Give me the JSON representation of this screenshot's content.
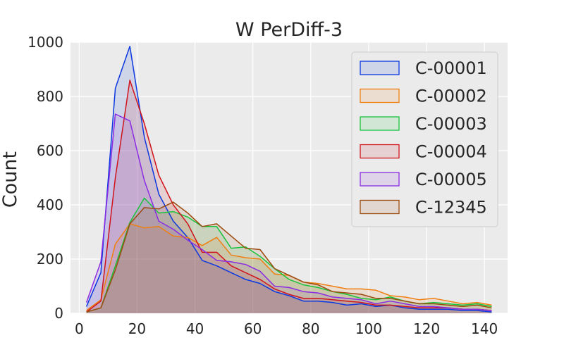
{
  "chart_data": {
    "type": "area",
    "title": "W PerDiff-3",
    "xlabel": "",
    "ylabel": "Count",
    "xlim": [
      -3,
      148
    ],
    "ylim": [
      0,
      1000
    ],
    "xticks": [
      0,
      20,
      40,
      60,
      80,
      100,
      120,
      140
    ],
    "yticks": [
      0,
      200,
      400,
      600,
      800,
      1000
    ],
    "xtick_labels": [
      "0",
      "20",
      "40",
      "60",
      "80",
      "100",
      "120",
      "140"
    ],
    "ytick_labels": [
      "0",
      "200",
      "400",
      "600",
      "800",
      "1000"
    ],
    "grid": true,
    "legend_position": "top-right",
    "series": [
      {
        "name": "C-00001",
        "color": "#0b38e0",
        "x": [
          2.5,
          7.5,
          12.5,
          17.5,
          22.5,
          27.5,
          32.5,
          37.5,
          42.5,
          47.5,
          52.5,
          57.5,
          62.5,
          67.5,
          72.5,
          77.5,
          82.5,
          87.5,
          92.5,
          97.5,
          102.5,
          107.5,
          112.5,
          117.5,
          122.5,
          127.5,
          132.5,
          137.5,
          142.5
        ],
        "y": [
          25,
          150,
          830,
          985,
          650,
          440,
          340,
          280,
          195,
          175,
          150,
          125,
          110,
          80,
          65,
          45,
          45,
          40,
          30,
          35,
          25,
          30,
          20,
          15,
          15,
          15,
          10,
          10,
          5
        ]
      },
      {
        "name": "C-00002",
        "color": "#f07f10",
        "x": [
          2.5,
          7.5,
          12.5,
          17.5,
          22.5,
          27.5,
          32.5,
          37.5,
          42.5,
          47.5,
          52.5,
          57.5,
          62.5,
          67.5,
          72.5,
          77.5,
          82.5,
          87.5,
          92.5,
          97.5,
          102.5,
          107.5,
          112.5,
          117.5,
          122.5,
          127.5,
          132.5,
          137.5,
          142.5
        ],
        "y": [
          10,
          50,
          255,
          330,
          315,
          320,
          285,
          280,
          250,
          280,
          215,
          205,
          200,
          145,
          140,
          115,
          110,
          100,
          90,
          90,
          85,
          65,
          60,
          50,
          55,
          45,
          35,
          40,
          30
        ]
      },
      {
        "name": "C-00003",
        "color": "#19c43c",
        "x": [
          2.5,
          7.5,
          12.5,
          17.5,
          22.5,
          27.5,
          32.5,
          37.5,
          42.5,
          47.5,
          52.5,
          57.5,
          62.5,
          67.5,
          72.5,
          77.5,
          82.5,
          87.5,
          92.5,
          97.5,
          102.5,
          107.5,
          112.5,
          117.5,
          122.5,
          127.5,
          132.5,
          137.5,
          142.5
        ],
        "y": [
          5,
          20,
          175,
          335,
          425,
          370,
          375,
          355,
          320,
          320,
          240,
          245,
          210,
          165,
          125,
          105,
          95,
          80,
          70,
          55,
          50,
          60,
          45,
          35,
          40,
          35,
          30,
          35,
          25
        ]
      },
      {
        "name": "C-00004",
        "color": "#d0131b",
        "x": [
          2.5,
          7.5,
          12.5,
          17.5,
          22.5,
          27.5,
          32.5,
          37.5,
          42.5,
          47.5,
          52.5,
          57.5,
          62.5,
          67.5,
          72.5,
          77.5,
          82.5,
          87.5,
          92.5,
          97.5,
          102.5,
          107.5,
          112.5,
          117.5,
          122.5,
          127.5,
          132.5,
          137.5,
          142.5
        ],
        "y": [
          5,
          45,
          500,
          860,
          700,
          510,
          400,
          330,
          225,
          225,
          175,
          150,
          125,
          90,
          70,
          55,
          55,
          50,
          45,
          40,
          30,
          30,
          25,
          20,
          20,
          20,
          15,
          15,
          10
        ]
      },
      {
        "name": "C-00005",
        "color": "#8b2be2",
        "x": [
          2.5,
          7.5,
          12.5,
          17.5,
          22.5,
          27.5,
          32.5,
          37.5,
          42.5,
          47.5,
          52.5,
          57.5,
          62.5,
          67.5,
          72.5,
          77.5,
          82.5,
          87.5,
          92.5,
          97.5,
          102.5,
          107.5,
          112.5,
          117.5,
          122.5,
          127.5,
          132.5,
          137.5,
          142.5
        ],
        "y": [
          40,
          190,
          735,
          710,
          490,
          340,
          310,
          270,
          235,
          195,
          190,
          180,
          155,
          100,
          95,
          80,
          75,
          60,
          55,
          50,
          35,
          45,
          35,
          25,
          25,
          20,
          15,
          15,
          10
        ]
      },
      {
        "name": "C-12345",
        "color": "#9b4a0e",
        "x": [
          2.5,
          7.5,
          12.5,
          17.5,
          22.5,
          27.5,
          32.5,
          37.5,
          42.5,
          47.5,
          52.5,
          57.5,
          62.5,
          67.5,
          72.5,
          77.5,
          82.5,
          87.5,
          92.5,
          97.5,
          102.5,
          107.5,
          112.5,
          117.5,
          122.5,
          127.5,
          132.5,
          137.5,
          142.5
        ],
        "y": [
          5,
          20,
          160,
          330,
          390,
          385,
          410,
          370,
          320,
          330,
          285,
          240,
          235,
          165,
          140,
          115,
          105,
          80,
          75,
          70,
          55,
          55,
          45,
          35,
          35,
          30,
          25,
          30,
          20
        ]
      }
    ]
  }
}
